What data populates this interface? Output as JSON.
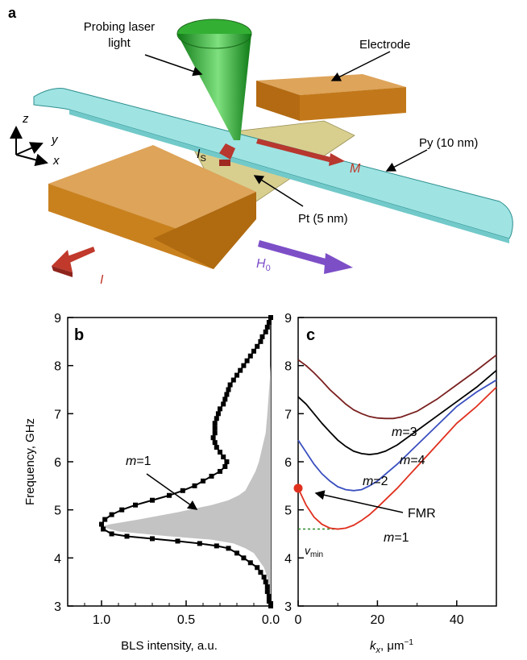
{
  "panel_a": {
    "letter": "a",
    "labels": {
      "laser_line1": "Probing laser",
      "laser_line2": "light",
      "electrode": "Electrode",
      "py": "Py (10 nm)",
      "pt": "Pt (5 nm)",
      "Is_main": "I",
      "Is_sub": "S",
      "M": "M",
      "H0_main": "H",
      "H0_sub": "0",
      "I": "I",
      "axis_z": "z",
      "axis_y": "y",
      "axis_x": "x"
    },
    "colors": {
      "electrode": "#e0a035",
      "py": "#9fe3e3",
      "pt": "#d6cc8a",
      "laser": "#2aa02a",
      "current_arrow": "#c0392b",
      "field_arrow": "#7d4fc7"
    }
  },
  "chart_data": [
    {
      "panel": "b",
      "type": "line",
      "xlabel": "BLS intensity, a.u.",
      "ylabel": "Frequency, GHz",
      "xlim": [
        1.2,
        0.0
      ],
      "ylim": [
        3,
        9
      ],
      "x_reversed": true,
      "xticks": [
        "1.0",
        "0.5",
        "0.0"
      ],
      "xtick_values": [
        1.0,
        0.5,
        0.0
      ],
      "yticks": [
        "3",
        "4",
        "5",
        "6",
        "7",
        "8",
        "9"
      ],
      "annotation": {
        "main": "m",
        "rest": "=1"
      },
      "series": [
        {
          "style": "markers+line",
          "color": "#000000",
          "x": [
            0.0,
            0.01,
            0.02,
            0.03,
            0.05,
            0.06,
            0.08,
            0.1,
            0.12,
            0.14,
            0.16,
            0.18,
            0.2,
            0.22,
            0.24,
            0.25,
            0.26,
            0.27,
            0.28,
            0.3,
            0.31,
            0.32,
            0.33,
            0.33,
            0.33,
            0.34,
            0.33,
            0.32,
            0.3,
            0.28,
            0.26,
            0.27,
            0.3,
            0.35,
            0.4,
            0.45,
            0.52,
            0.6,
            0.7,
            0.8,
            0.88,
            0.94,
            0.98,
            1.0,
            0.99,
            0.94,
            0.85,
            0.7,
            0.55,
            0.42,
            0.32,
            0.25,
            0.2,
            0.16,
            0.12,
            0.08,
            0.06,
            0.04,
            0.03,
            0.02,
            0.02,
            0.01,
            0.01,
            0.0,
            0.0
          ],
          "y": [
            9.0,
            8.9,
            8.8,
            8.7,
            8.6,
            8.5,
            8.4,
            8.3,
            8.2,
            8.1,
            8.0,
            7.9,
            7.8,
            7.7,
            7.6,
            7.5,
            7.4,
            7.3,
            7.2,
            7.1,
            7.0,
            6.9,
            6.8,
            6.7,
            6.6,
            6.5,
            6.4,
            6.3,
            6.2,
            6.1,
            6.0,
            5.9,
            5.8,
            5.7,
            5.6,
            5.5,
            5.4,
            5.3,
            5.2,
            5.1,
            5.0,
            4.9,
            4.8,
            4.7,
            4.6,
            4.5,
            4.45,
            4.4,
            4.35,
            4.3,
            4.25,
            4.2,
            4.1,
            4.0,
            3.9,
            3.8,
            3.7,
            3.6,
            3.5,
            3.4,
            3.3,
            3.2,
            3.1,
            3.05,
            3.0
          ]
        },
        {
          "style": "filled-area",
          "color": "#c3c3c3",
          "x": [
            0.0,
            0.01,
            0.02,
            0.03,
            0.05,
            0.07,
            0.09,
            0.12,
            0.15,
            0.19,
            0.25,
            0.35,
            0.55,
            0.78,
            0.95,
            1.0,
            0.9,
            0.6,
            0.35,
            0.22,
            0.15,
            0.1,
            0.07,
            0.04,
            0.02,
            0.01,
            0.0
          ],
          "y": [
            8.0,
            7.5,
            7.0,
            6.6,
            6.3,
            6.0,
            5.8,
            5.6,
            5.4,
            5.3,
            5.2,
            5.1,
            4.95,
            4.8,
            4.7,
            4.65,
            4.55,
            4.45,
            4.38,
            4.3,
            4.2,
            4.1,
            3.95,
            3.8,
            3.6,
            3.4,
            3.0
          ]
        }
      ]
    },
    {
      "panel": "c",
      "type": "line",
      "xlabel_main": "k",
      "xlabel_sub": "x",
      "xlabel_rest": ", μm",
      "xlabel_sup": "−1",
      "ylabel": "",
      "xlim": [
        0,
        50
      ],
      "ylim": [
        3,
        9
      ],
      "xticks": [
        "0",
        "20",
        "40"
      ],
      "xtick_values": [
        0,
        20,
        40
      ],
      "yticks": [
        "3",
        "4",
        "5",
        "6",
        "7",
        "8",
        "9"
      ],
      "series": [
        {
          "label_main": "m",
          "label_rest": "=1",
          "color": "#e0301e",
          "x": [
            0,
            2,
            4,
            6,
            8,
            10,
            12,
            14,
            16,
            18,
            20,
            25,
            30,
            35,
            40,
            45,
            50
          ],
          "y": [
            5.45,
            5.1,
            4.85,
            4.7,
            4.62,
            4.6,
            4.62,
            4.68,
            4.78,
            4.9,
            5.05,
            5.45,
            5.9,
            6.35,
            6.8,
            7.15,
            7.55
          ]
        },
        {
          "label_main": "m",
          "label_rest": "=2",
          "color": "#3a4fbf",
          "x": [
            0,
            2,
            4,
            6,
            8,
            10,
            12,
            14,
            16,
            18,
            20,
            25,
            30,
            35,
            40,
            45,
            50
          ],
          "y": [
            6.45,
            6.2,
            5.95,
            5.75,
            5.6,
            5.48,
            5.42,
            5.4,
            5.42,
            5.5,
            5.6,
            5.95,
            6.35,
            6.75,
            7.15,
            7.45,
            7.7
          ]
        },
        {
          "label_main": "m",
          "label_rest": "=3",
          "color": "#000000",
          "x": [
            0,
            2,
            4,
            6,
            8,
            10,
            12,
            14,
            16,
            18,
            20,
            22,
            25,
            30,
            35,
            40,
            45,
            50
          ],
          "y": [
            7.35,
            7.2,
            7.0,
            6.8,
            6.62,
            6.45,
            6.32,
            6.22,
            6.17,
            6.15,
            6.17,
            6.22,
            6.35,
            6.65,
            6.95,
            7.25,
            7.55,
            7.9
          ]
        },
        {
          "label_main": "m",
          "label_rest": "=4",
          "color": "#7a2020",
          "x": [
            0,
            2,
            4,
            6,
            8,
            10,
            12,
            14,
            16,
            18,
            20,
            22,
            24,
            26,
            30,
            35,
            40,
            45,
            50
          ],
          "y": [
            8.12,
            8.0,
            7.85,
            7.68,
            7.5,
            7.35,
            7.2,
            7.08,
            7.0,
            6.94,
            6.91,
            6.9,
            6.9,
            6.93,
            7.05,
            7.3,
            7.6,
            7.9,
            8.22
          ]
        }
      ],
      "vmin": {
        "y": 4.6,
        "x_end": 10,
        "label_main": "v",
        "label_sub": "min",
        "color": "#2a8a2a"
      },
      "fmr": {
        "x": 0,
        "y": 5.45,
        "label": "FMR",
        "color": "#e0301e"
      }
    }
  ]
}
